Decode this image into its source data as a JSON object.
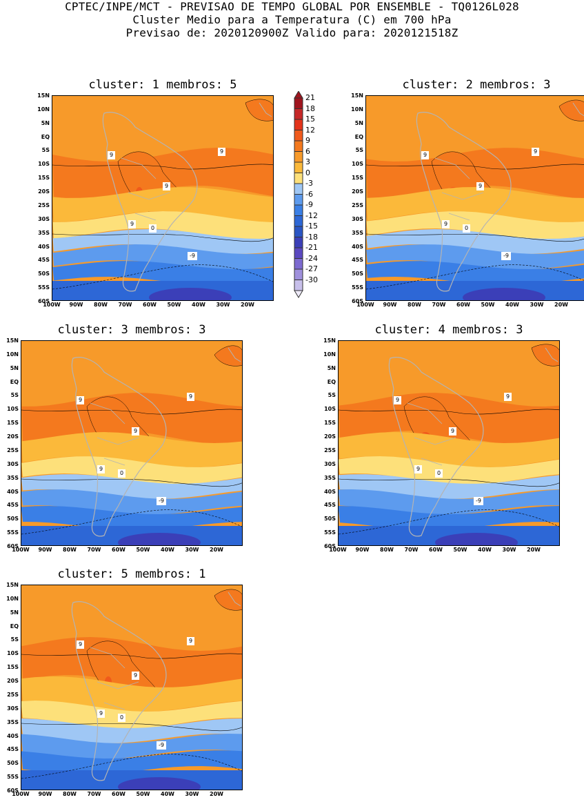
{
  "header": {
    "line1": "CPTEC/INPE/MCT - PREVISAO DE TEMPO GLOBAL POR ENSEMBLE - TQ0126L028",
    "line2": "Cluster Medio para a Temperatura (C) em 700 hPa",
    "line3": "Previsao de: 2020120900Z   Valido para: 2020121518Z"
  },
  "axes": {
    "lat_ticks": [
      "15N",
      "10N",
      "5N",
      "EQ",
      "5S",
      "10S",
      "15S",
      "20S",
      "25S",
      "30S",
      "35S",
      "40S",
      "45S",
      "50S",
      "55S",
      "60S"
    ],
    "lon_ticks": [
      "100W",
      "90W",
      "80W",
      "70W",
      "60W",
      "50W",
      "40W",
      "30W",
      "20W"
    ]
  },
  "legend": {
    "labels": [
      "21",
      "18",
      "15",
      "12",
      "9",
      "6",
      "3",
      "0",
      "-3",
      "-6",
      "-9",
      "-12",
      "-15",
      "-18",
      "-21",
      "-24",
      "-27",
      "-30"
    ],
    "colors": [
      "#a0141e",
      "#c62828",
      "#e3331a",
      "#f05a1c",
      "#f4791e",
      "#f79a2a",
      "#fbb93a",
      "#fde07a",
      "#9fc7f5",
      "#5d9bee",
      "#3a7fe6",
      "#2d67d6",
      "#2a55c4",
      "#3b3fb8",
      "#5a48c0",
      "#7c6ad0",
      "#9f90dc",
      "#c7bfea",
      "#eeeaf8"
    ]
  },
  "panels": [
    {
      "title": "cluster: 1   membros: 5",
      "labels9": [
        "9",
        "9",
        "9",
        "9"
      ],
      "label0": "0",
      "labelneg": "-9"
    },
    {
      "title": "cluster: 2   membros: 3",
      "labels9": [
        "9",
        "9",
        "9",
        "9"
      ],
      "label0": "0",
      "labelneg": "-9"
    },
    {
      "title": "cluster: 3   membros: 3",
      "labels9": [
        "9",
        "9",
        "9",
        "9"
      ],
      "label0": "0",
      "labelneg": "-9"
    },
    {
      "title": "cluster: 4   membros: 3",
      "labels9": [
        "9",
        "9",
        "9",
        "9"
      ],
      "label0": "0",
      "labelneg": "-9"
    },
    {
      "title": "cluster: 5   membros: 1",
      "labels9": [
        "9",
        "9",
        "9",
        "9"
      ],
      "label0": "0",
      "labelneg": "-9"
    }
  ]
}
